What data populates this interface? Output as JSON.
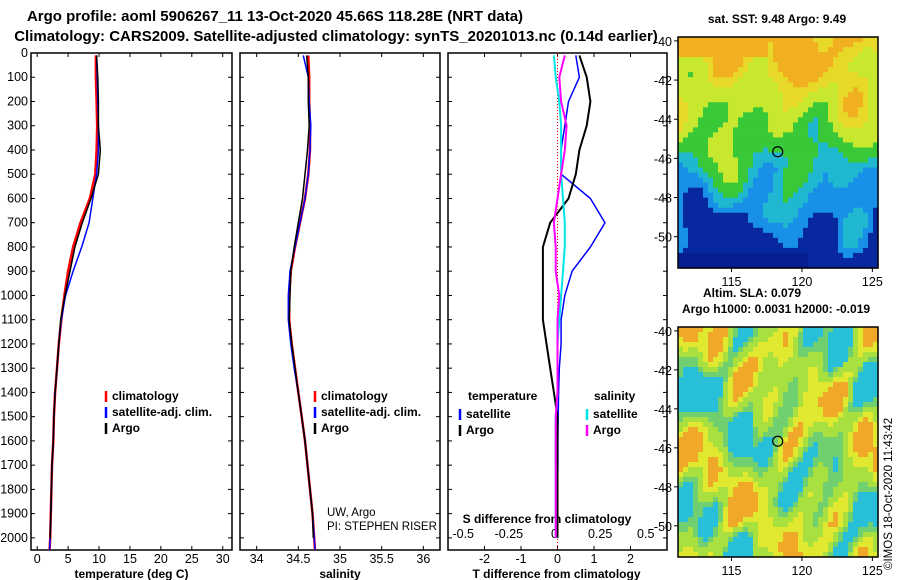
{
  "title_line1": "Argo profile: aoml 5906267_11 13-Oct-2020 45.66S 118.28E (NRT data)",
  "title_line2": "Climatology: CARS2009. Satellite-adjusted climatology: synTS_20201013.nc (0.14d earlier)",
  "credit_line1": "UW, Argo",
  "credit_line2": "PI: STEPHEN RISER",
  "imos_stamp": "©IMOS 18-Oct-2020 11:43:42",
  "colors": {
    "climatology": "#ff0000",
    "satellite": "#0000ff",
    "argo": "#000000",
    "satellite_salinity": "#00e5e5",
    "argo_salinity": "#ff00ff"
  },
  "chart_data": [
    {
      "type": "line",
      "id": "temperature",
      "xlabel": "temperature (deg C)",
      "ylabel": "depth",
      "xlim": [
        -1,
        31.5
      ],
      "ylim": [
        2050,
        0
      ],
      "xticks": [
        0,
        5,
        10,
        15,
        20,
        25,
        30
      ],
      "yticks": [
        0,
        100,
        200,
        300,
        400,
        500,
        600,
        700,
        800,
        900,
        1000,
        1100,
        1200,
        1300,
        1400,
        1500,
        1600,
        1700,
        1800,
        1900,
        2000
      ],
      "legend": [
        {
          "label": "climatology",
          "color": "#ff0000"
        },
        {
          "label": "satellite-adj. clim.",
          "color": "#0000ff"
        },
        {
          "label": "Argo",
          "color": "#000000"
        }
      ],
      "series": [
        {
          "name": "climatology",
          "color": "#ff0000",
          "width": 2.5,
          "x": [
            9.5,
            9.5,
            9.6,
            9.7,
            9.6,
            9.4,
            8.5,
            7.0,
            5.8,
            5.0,
            4.4,
            3.9,
            3.5,
            3.2,
            2.9,
            2.7,
            2.6,
            2.4,
            2.3,
            2.2,
            2.1,
            2.0
          ],
          "y": [
            10,
            100,
            200,
            300,
            400,
            500,
            600,
            700,
            800,
            900,
            1000,
            1100,
            1200,
            1300,
            1400,
            1500,
            1600,
            1700,
            1800,
            1900,
            2000,
            2050
          ]
        },
        {
          "name": "satellite-adj. clim.",
          "color": "#0000ff",
          "width": 1.5,
          "x": [
            9.6,
            9.7,
            9.8,
            9.9,
            9.9,
            9.6,
            9.0,
            8.4,
            7.2,
            5.8,
            4.6,
            3.9,
            3.5,
            3.2,
            2.9,
            2.7,
            2.6,
            2.4,
            2.3,
            2.2,
            2.1,
            2.0
          ],
          "y": [
            10,
            100,
            200,
            300,
            400,
            500,
            600,
            700,
            800,
            900,
            1000,
            1100,
            1200,
            1300,
            1400,
            1500,
            1600,
            1700,
            1800,
            1900,
            2000,
            2050
          ]
        },
        {
          "name": "Argo",
          "color": "#000000",
          "width": 1.5,
          "x": [
            9.6,
            9.8,
            9.9,
            9.9,
            10.2,
            9.9,
            8.7,
            7.3,
            6.1,
            5.3,
            4.5,
            3.8,
            3.5,
            3.2,
            2.9,
            2.7,
            2.6,
            2.4,
            2.3,
            2.2,
            2.1
          ],
          "y": [
            10,
            100,
            200,
            300,
            400,
            500,
            600,
            700,
            800,
            900,
            1000,
            1100,
            1200,
            1300,
            1400,
            1500,
            1600,
            1700,
            1800,
            1900,
            2000
          ]
        }
      ]
    },
    {
      "type": "line",
      "id": "salinity",
      "xlabel": "salinity",
      "xlim": [
        33.8,
        36.2
      ],
      "ylim": [
        2050,
        0
      ],
      "xticks": [
        34,
        34.5,
        35,
        35.5,
        36
      ],
      "legend": [
        {
          "label": "climatology",
          "color": "#ff0000"
        },
        {
          "label": "satellite-adj. clim.",
          "color": "#0000ff"
        },
        {
          "label": "Argo",
          "color": "#000000"
        }
      ],
      "series": [
        {
          "name": "climatology",
          "color": "#ff0000",
          "width": 2.5,
          "x": [
            34.62,
            34.63,
            34.63,
            34.64,
            34.64,
            34.62,
            34.58,
            34.52,
            34.46,
            34.41,
            34.39,
            34.39,
            34.42,
            34.46,
            34.5,
            34.54,
            34.58,
            34.61,
            34.64,
            34.67,
            34.69,
            34.7
          ],
          "y": [
            10,
            100,
            200,
            300,
            400,
            500,
            600,
            700,
            800,
            900,
            1000,
            1100,
            1200,
            1300,
            1400,
            1500,
            1600,
            1700,
            1800,
            1900,
            2000,
            2050
          ]
        },
        {
          "name": "satellite-adj. clim.",
          "color": "#0000ff",
          "width": 1.5,
          "x": [
            34.56,
            34.62,
            34.63,
            34.65,
            34.64,
            34.62,
            34.58,
            34.52,
            34.46,
            34.4,
            34.38,
            34.38,
            34.41,
            34.45,
            34.5,
            34.54,
            34.58,
            34.61,
            34.64,
            34.67,
            34.69,
            34.7
          ],
          "y": [
            10,
            100,
            200,
            300,
            400,
            500,
            600,
            700,
            800,
            900,
            1000,
            1100,
            1200,
            1300,
            1400,
            1500,
            1600,
            1700,
            1800,
            1900,
            2000,
            2050
          ]
        },
        {
          "name": "Argo",
          "color": "#000000",
          "width": 1.5,
          "x": [
            34.6,
            34.62,
            34.62,
            34.63,
            34.61,
            34.58,
            34.55,
            34.5,
            34.45,
            34.41,
            34.4,
            34.39,
            34.42,
            34.46,
            34.5,
            34.54,
            34.58,
            34.61,
            34.64,
            34.67,
            34.68
          ],
          "y": [
            10,
            100,
            200,
            300,
            400,
            500,
            600,
            700,
            800,
            900,
            1000,
            1100,
            1200,
            1300,
            1400,
            1500,
            1600,
            1700,
            1800,
            1900,
            2000
          ]
        }
      ]
    },
    {
      "type": "line",
      "id": "difference",
      "xlabel": "T difference from climatology",
      "xlabel_top": "S difference from climatology",
      "xlim": [
        -3,
        3
      ],
      "ylim": [
        2050,
        0
      ],
      "xticks": [
        -2,
        -1,
        0,
        1,
        2
      ],
      "xticks_s": [
        -0.5,
        -0.25,
        0,
        0.25,
        0.5
      ],
      "xticks_s_labels": [
        "-0.5",
        "-0.25",
        "0",
        "0.25",
        "0.5"
      ],
      "legend_left_title": "temperature",
      "legend_right_title": "salinity",
      "legend": [
        {
          "label": "satellite",
          "color": "#0000ff",
          "column": "temperature"
        },
        {
          "label": "Argo",
          "color": "#000000",
          "column": "temperature"
        },
        {
          "label": "satellite",
          "color": "#00e5e5",
          "column": "salinity"
        },
        {
          "label": "Argo",
          "color": "#ff00ff",
          "column": "salinity"
        }
      ],
      "series": [
        {
          "name": "T satellite",
          "color": "#0000ff",
          "width": 1.5,
          "x": [
            0.5,
            0.6,
            0.3,
            0.2,
            0.1,
            0.1,
            0.9,
            1.3,
            0.9,
            0.4,
            0.2,
            0.1,
            0.1,
            0.05,
            0.03,
            0.02,
            0.01,
            0.01,
            0.0,
            0.0,
            0.0
          ],
          "y": [
            10,
            100,
            200,
            300,
            400,
            500,
            600,
            700,
            800,
            900,
            1000,
            1100,
            1200,
            1300,
            1400,
            1500,
            1600,
            1700,
            1800,
            1900,
            2000
          ]
        },
        {
          "name": "T Argo",
          "color": "#000000",
          "width": 2,
          "x": [
            0.6,
            0.8,
            0.9,
            0.8,
            0.6,
            0.5,
            0.3,
            -0.2,
            -0.4,
            -0.4,
            -0.4,
            -0.4,
            -0.3,
            -0.2,
            -0.1,
            0.0,
            0.0,
            0.0,
            0.0,
            0.0,
            0.0
          ],
          "y": [
            10,
            100,
            200,
            300,
            400,
            500,
            600,
            700,
            800,
            900,
            1000,
            1100,
            1200,
            1300,
            1400,
            1500,
            1600,
            1700,
            1800,
            1900,
            2000
          ]
        },
        {
          "name": "S satellite",
          "color": "#00e5e5",
          "width": 2,
          "x": [
            -0.02,
            -0.01,
            0.01,
            0.02,
            0.02,
            0.02,
            0.03,
            0.04,
            0.04,
            0.03,
            0.02,
            0.01,
            0.0,
            0.0,
            0.0,
            -0.01,
            -0.01,
            -0.01,
            -0.01,
            -0.01,
            -0.01
          ],
          "y": [
            10,
            100,
            200,
            300,
            400,
            500,
            600,
            700,
            800,
            900,
            1000,
            1100,
            1200,
            1300,
            1400,
            1500,
            1600,
            1700,
            1800,
            1900,
            2000
          ]
        },
        {
          "name": "S Argo",
          "color": "#ff00ff",
          "width": 2,
          "x": [
            0.04,
            0.01,
            0.02,
            0.05,
            0.04,
            0.02,
            0.0,
            -0.02,
            -0.01,
            -0.01,
            0.01,
            0.0,
            0.0,
            0.0,
            0.0,
            -0.01,
            -0.01,
            -0.01,
            -0.01,
            -0.01,
            -0.01
          ],
          "y": [
            10,
            100,
            200,
            300,
            400,
            500,
            600,
            700,
            800,
            900,
            1000,
            1100,
            1200,
            1300,
            1400,
            1500,
            1600,
            1700,
            1800,
            1900,
            2000
          ]
        }
      ]
    },
    {
      "type": "heatmap",
      "id": "sst_map",
      "title": "sat. SST: 9.48 Argo: 9.49",
      "xticks": [
        115,
        120,
        125
      ],
      "yticks": [
        -40,
        -42,
        -44,
        -46,
        -48,
        -50
      ],
      "ytick_labels": [
        "-40",
        "-42",
        "-44",
        "-46",
        "-48",
        "-50"
      ],
      "xlim": [
        111.2,
        125.4
      ],
      "ylim": [
        -51.6,
        -39.8
      ],
      "marker": {
        "lon": 118.28,
        "lat": -45.66
      }
    },
    {
      "type": "heatmap",
      "id": "sla_map",
      "title_line1": "Altim. SLA: 0.079",
      "title_line2": "Argo h1000: 0.0031 h2000: -0.019",
      "xticks": [
        115,
        120,
        125
      ],
      "yticks": [
        -40,
        -42,
        -44,
        -46,
        -48,
        -50
      ],
      "ytick_labels": [
        "-40",
        "-42",
        "-44",
        "-46",
        "-48",
        "-50"
      ],
      "xlim": [
        111.2,
        125.4
      ],
      "ylim": [
        -51.6,
        -39.8
      ],
      "marker": {
        "lon": 118.28,
        "lat": -45.66
      }
    }
  ]
}
